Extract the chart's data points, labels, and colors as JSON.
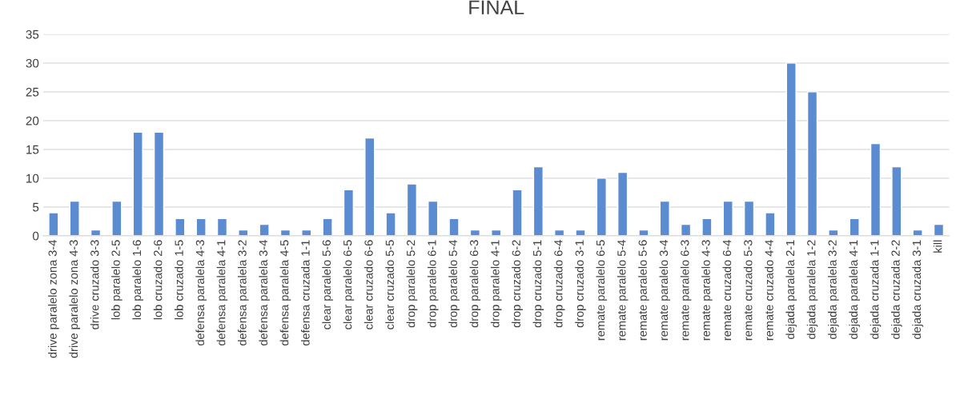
{
  "chart_data": {
    "type": "bar",
    "title": "FINAL",
    "categories": [
      "drive paralelo zona 3-4",
      "drive paralelo zona 4-3",
      "drive cruzado 3-3",
      "lob paralelo 2-5",
      "lob paralelo 1-6",
      "lob cruzado 2-6",
      "lob cruzado 1-5",
      "defensa paralela 4-3",
      "defensa paralela 4-1",
      "defensa paralela 3-2",
      "defensa paralela 3-4",
      "defensa paralela 4-5",
      "defensa cruzada 1-1",
      "clear paralelo 5-6",
      "clear paralelo 6-5",
      "clear cruzado 6-6",
      "clear cruzado 5-5",
      "drop paralelo 5-2",
      "drop paralelo 6-1",
      "drop paralelo 5-4",
      "drop paralelo 6-3",
      "drop paralelo 4-1",
      "drop cruzado 6-2",
      "drop cruzado 5-1",
      "drop cruzado 6-4",
      "drop cruzado 3-1",
      "remate paralelo 6-5",
      "remate paralelo 5-4",
      "remate paralelo 5-6",
      "remate paralelo 3-4",
      "remate paralelo 6-3",
      "remate paralelo 4-3",
      "remate cruzado 6-4",
      "remate cruzado 5-3",
      "remate cruzado 4-4",
      "dejada paralela 2-1",
      "dejada paralela 1-2",
      "dejada paralela 3-2",
      "dejada paralela 4-1",
      "dejada cruzada 1-1",
      "dejada cruzada 2-2",
      "dejada cruzada 3-1",
      "kill"
    ],
    "values": [
      4,
      6,
      1,
      6,
      18,
      18,
      3,
      3,
      3,
      1,
      2,
      1,
      1,
      3,
      8,
      17,
      4,
      9,
      6,
      3,
      1,
      1,
      8,
      12,
      1,
      1,
      10,
      11,
      1,
      6,
      2,
      3,
      6,
      6,
      4,
      30,
      25,
      1,
      3,
      16,
      12,
      1,
      2
    ],
    "color": "#5b8bd0",
    "ylim": [
      0,
      35
    ],
    "yticks": [
      0,
      5,
      10,
      15,
      20,
      25,
      30,
      35
    ],
    "grid": "y",
    "legend": false
  }
}
